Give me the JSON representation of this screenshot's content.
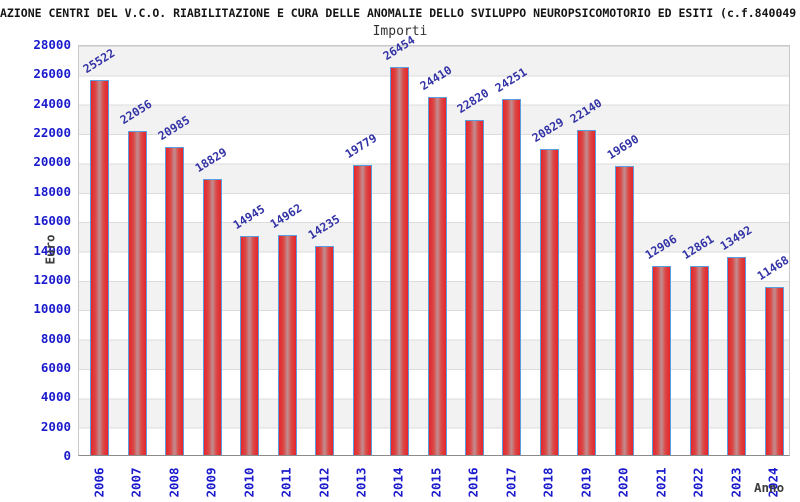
{
  "header": {
    "title": "AZIONE CENTRI DEL V.C.O. RIABILITAZIONE E CURA DELLE ANOMALIE DELLO SVILUPPO NEUROPSICOMOTORIO ED ESITI (c.f.840049"
  },
  "chart_data": {
    "type": "bar",
    "title": "Importi",
    "categories": [
      "2006",
      "2007",
      "2008",
      "2009",
      "2010",
      "2011",
      "2012",
      "2013",
      "2014",
      "2015",
      "2016",
      "2017",
      "2018",
      "2019",
      "2020",
      "2021",
      "2022",
      "2023",
      "2024"
    ],
    "values": [
      25522,
      22056,
      20985,
      18829,
      14945,
      14962,
      14235,
      19779,
      26454,
      24410,
      22820,
      24251,
      20829,
      22140,
      19690,
      12906,
      12861,
      13492,
      11468
    ],
    "xlabel": "Anno",
    "ylabel": "Euro",
    "ylim": [
      0,
      28000
    ],
    "ytick_step": 2000,
    "grid": "horizontal-bands",
    "legend": "none",
    "colors": {
      "bar_fill": "#e6252b",
      "bar_fill_center": "#c08f92",
      "bar_border": "#5b9ee0",
      "tick_labels": "#1a1acc",
      "value_labels": "#3333a6",
      "band_gray": "#f2f2f2",
      "gridline": "#dcdcdc",
      "axis_titles": "#3d3d3d",
      "title_text": "#151515"
    }
  }
}
